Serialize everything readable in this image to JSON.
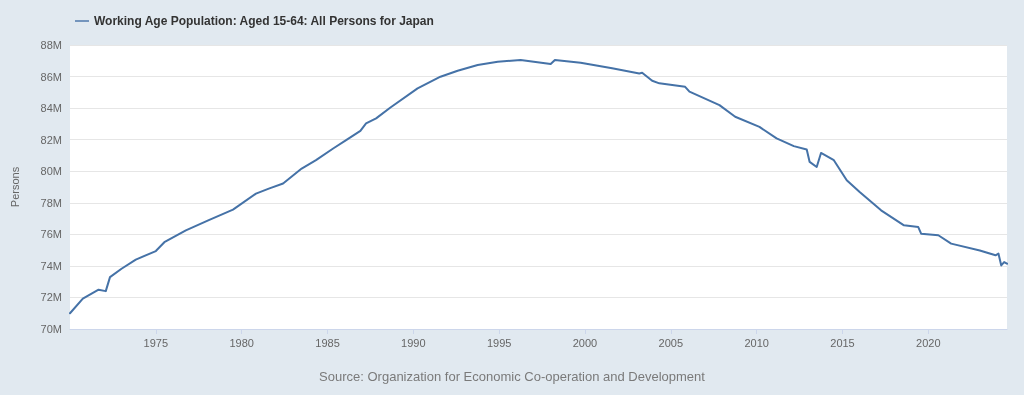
{
  "chart_data": {
    "type": "line",
    "ylabel": "Persons",
    "legend": "top left",
    "grid": "y",
    "marker": "none",
    "line_style": "solid",
    "annotations": [
      "Source: Organization for Economic Co-operation and Development"
    ],
    "xlim": [
      "1970-01",
      "2024-08"
    ],
    "xticks": [
      "1975",
      "1980",
      "1985",
      "1990",
      "1995",
      "2000",
      "2005",
      "2010",
      "2015",
      "2020"
    ],
    "ylim": [
      70000000,
      88000000
    ],
    "yticks": [
      {
        "value": 70000000,
        "label": "70M"
      },
      {
        "value": 72000000,
        "label": "72M"
      },
      {
        "value": 74000000,
        "label": "74M"
      },
      {
        "value": 76000000,
        "label": "76M"
      },
      {
        "value": 78000000,
        "label": "78M"
      },
      {
        "value": 80000000,
        "label": "80M"
      },
      {
        "value": 82000000,
        "label": "82M"
      },
      {
        "value": 84000000,
        "label": "84M"
      },
      {
        "value": 86000000,
        "label": "86M"
      },
      {
        "value": 88000000,
        "label": "88M"
      }
    ],
    "series": [
      {
        "name": "Working Age Population: Aged 15-64: All Persons for Japan",
        "color": "#4572a7",
        "x": [
          "1970-01",
          "1970-10",
          "1971-09",
          "1972-02",
          "1972-05",
          "1973-01",
          "1973-11",
          "1975-01",
          "1975-07",
          "1976-10",
          "1978-02",
          "1979-07",
          "1980-11",
          "1981-08",
          "1982-06",
          "1983-07",
          "1984-05",
          "1985-05",
          "1986-02",
          "1986-12",
          "1987-04",
          "1987-11",
          "1988-09",
          "1990-04",
          "1991-08",
          "1992-08",
          "1993-10",
          "1994-12",
          "1996-04",
          "1998-01",
          "1998-04",
          "1999-10",
          "2001-08",
          "2003-03",
          "2003-05",
          "2003-12",
          "2004-05",
          "2005-11",
          "2006-02",
          "2007-11",
          "2008-10",
          "2010-03",
          "2011-03",
          "2012-03",
          "2012-12",
          "2013-02",
          "2013-07",
          "2013-10",
          "2014-07",
          "2015-04",
          "2016-01",
          "2017-04",
          "2018-08",
          "2019-06",
          "2019-08",
          "2020-08",
          "2021-05",
          "2023-01",
          "2023-12",
          "2024-02",
          "2024-04",
          "2024-06",
          "2024-08"
        ],
        "values": [
          71000000,
          71920000,
          72490000,
          72400000,
          73290000,
          73820000,
          74400000,
          74940000,
          75500000,
          76250000,
          76900000,
          77570000,
          78580000,
          78900000,
          79220000,
          80170000,
          80700000,
          81440000,
          81970000,
          82560000,
          83030000,
          83350000,
          84040000,
          85250000,
          85990000,
          86370000,
          86730000,
          86940000,
          87050000,
          86790000,
          87050000,
          86880000,
          86520000,
          86200000,
          86240000,
          85730000,
          85570000,
          85350000,
          85040000,
          84190000,
          83450000,
          82810000,
          82080000,
          81590000,
          81380000,
          80590000,
          80270000,
          81160000,
          80700000,
          79430000,
          78690000,
          77520000,
          76570000,
          76460000,
          76040000,
          75940000,
          75410000,
          74980000,
          74670000,
          74780000,
          74030000,
          74240000,
          74140000
        ]
      }
    ]
  }
}
